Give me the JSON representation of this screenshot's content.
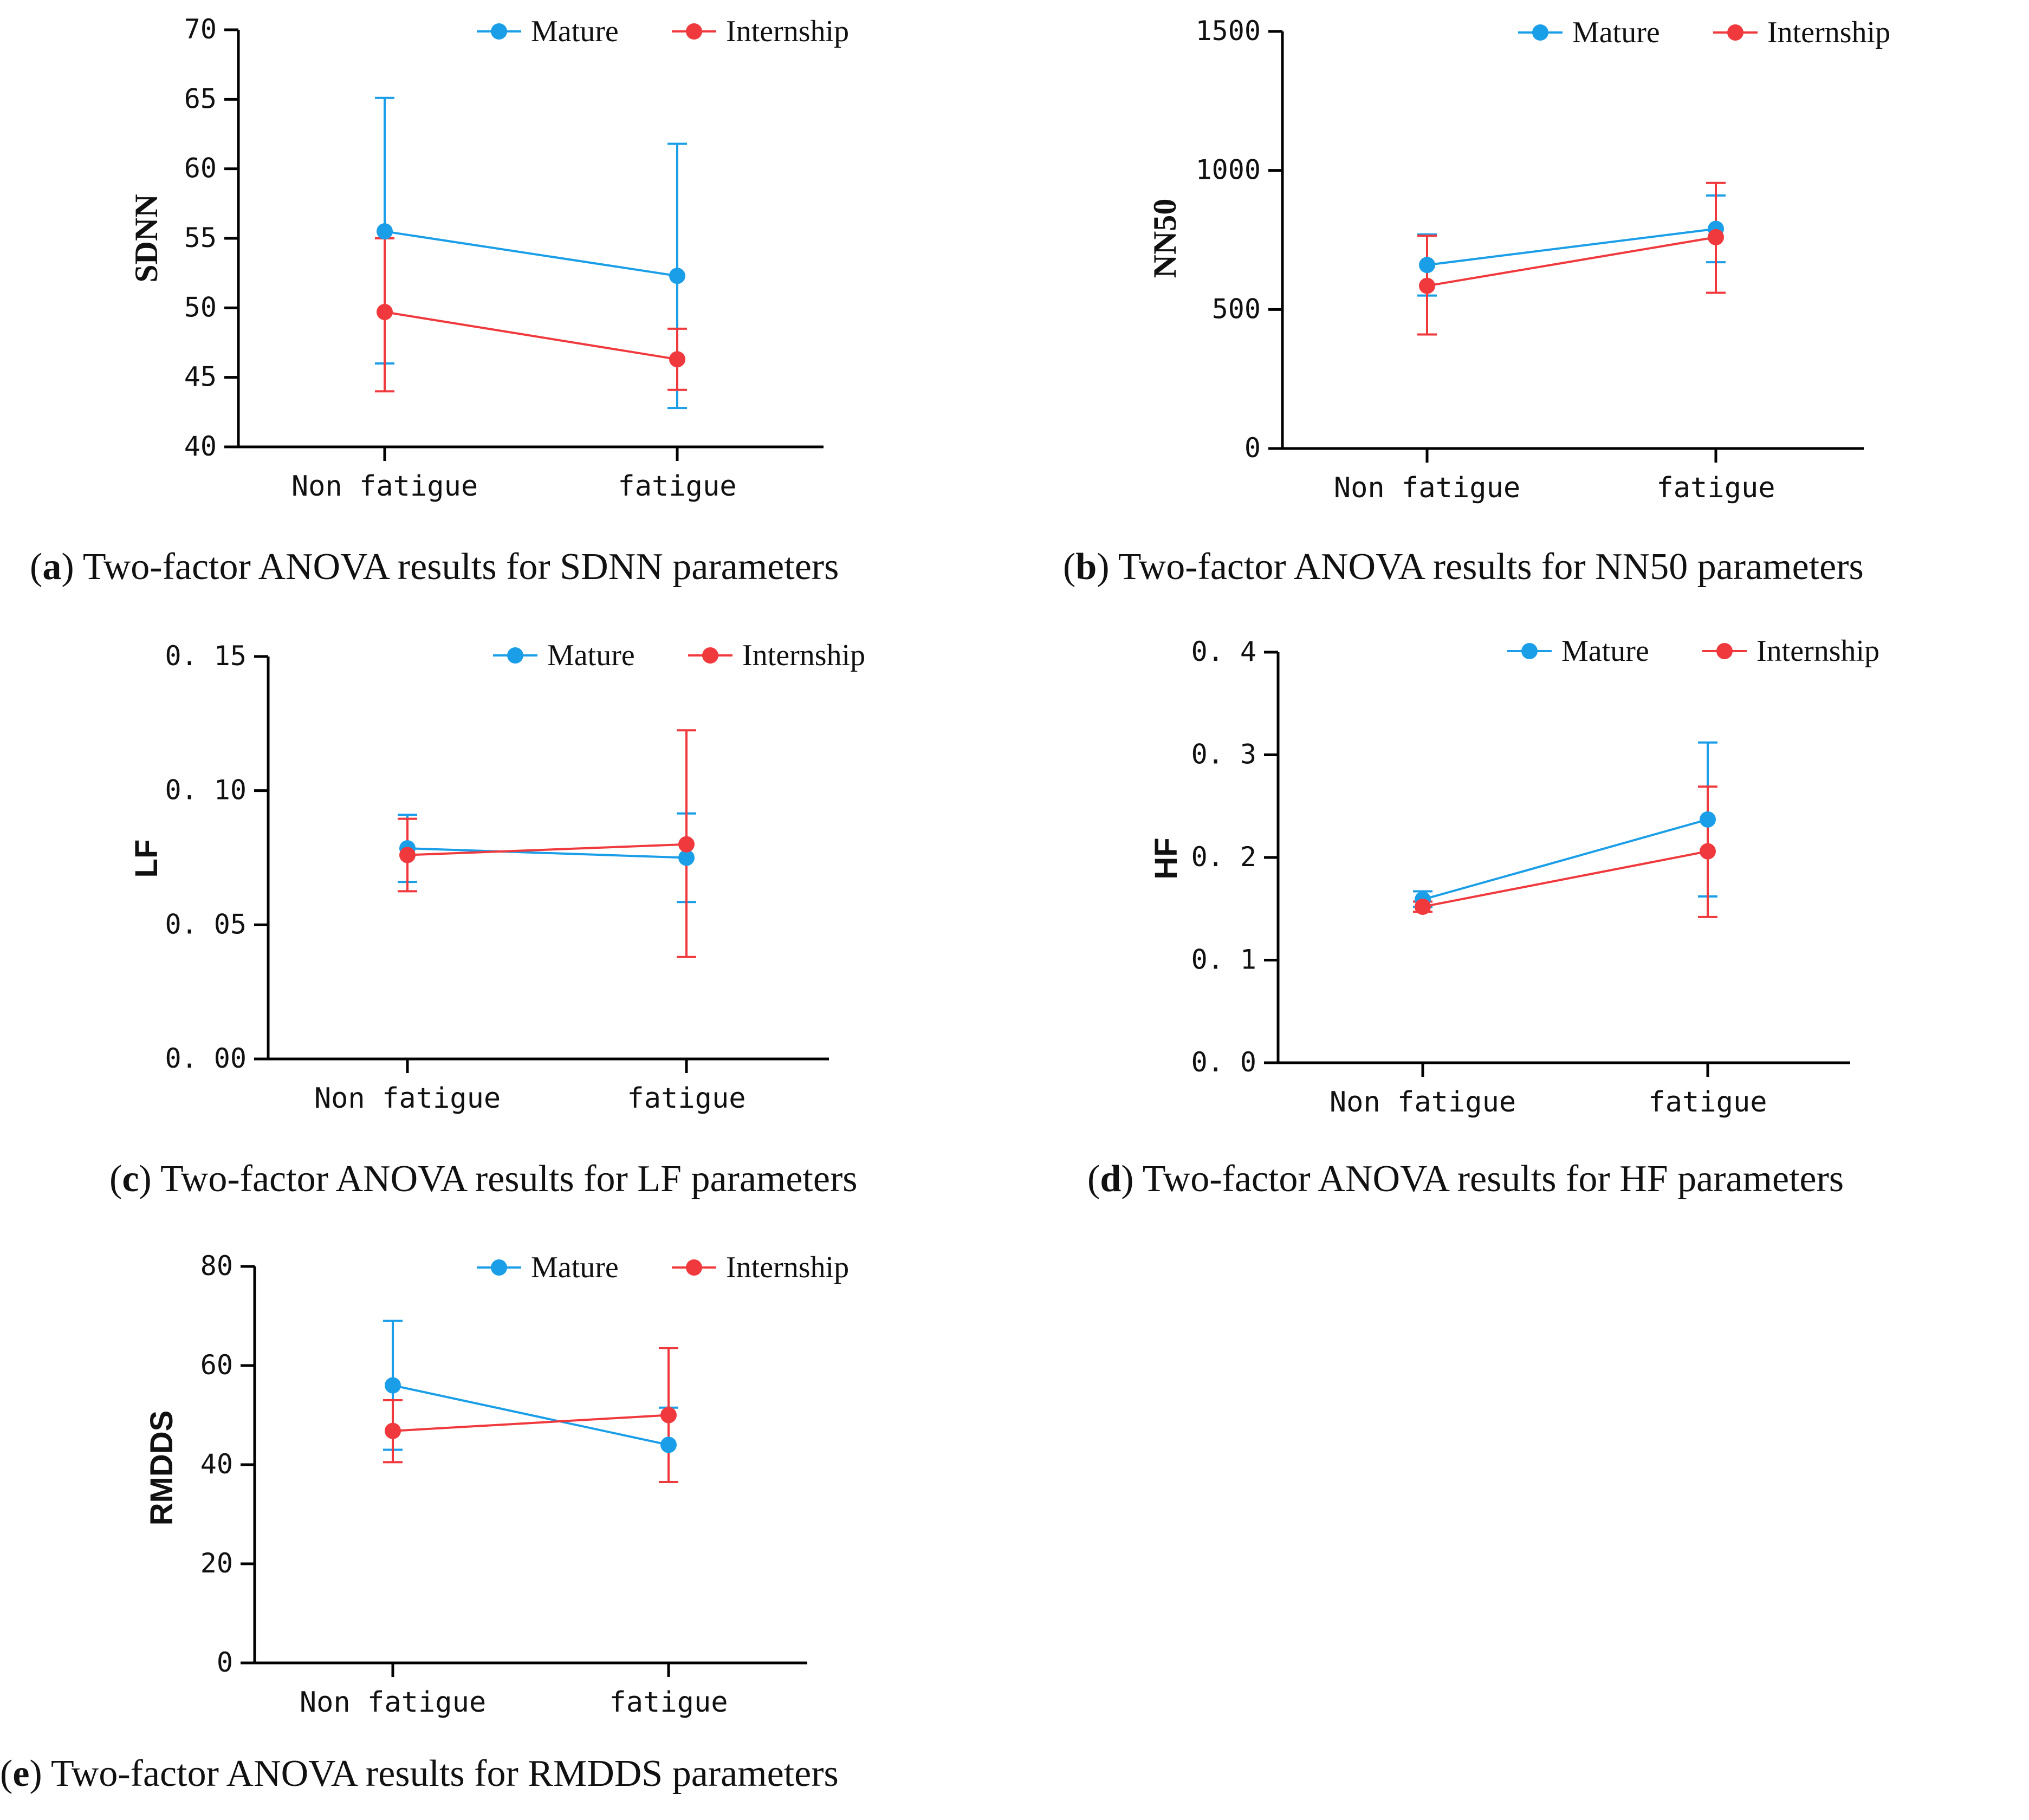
{
  "colors": {
    "mature": "#1a9ee8",
    "internship": "#f0393d",
    "axis": "#000000"
  },
  "legend_labels": [
    "Mature",
    "Internship"
  ],
  "chart_data": [
    {
      "id": "a",
      "type": "line",
      "title": "",
      "caption_letter": "a",
      "caption_text": "Two-factor ANOVA results for SDNN parameters",
      "ylabel": "SDNN",
      "ylabel_font": "serif",
      "categories": [
        "Non fatigue",
        "fatigue"
      ],
      "ylim": [
        40,
        70
      ],
      "yticks": [
        40,
        45,
        50,
        55,
        60,
        65,
        70
      ],
      "ytick_labels": [
        "40",
        "45",
        "50",
        "55",
        "60",
        "65",
        "70"
      ],
      "series": [
        {
          "name": "Mature",
          "values": [
            55.5,
            52.3
          ],
          "err_low": [
            46.0,
            42.8
          ],
          "err_high": [
            65.1,
            61.8
          ]
        },
        {
          "name": "Internship",
          "values": [
            49.7,
            46.3
          ],
          "err_low": [
            44.0,
            44.1
          ],
          "err_high": [
            55.0,
            48.5
          ]
        }
      ]
    },
    {
      "id": "b",
      "type": "line",
      "title": "",
      "caption_letter": "b",
      "caption_text": "Two-factor ANOVA results for NN50 parameters",
      "ylabel": "NN50",
      "ylabel_font": "serif",
      "categories": [
        "Non fatigue",
        "fatigue"
      ],
      "ylim": [
        0,
        1500
      ],
      "yticks": [
        0,
        500,
        1000,
        1500
      ],
      "ytick_labels": [
        "0",
        "500",
        "1000",
        "1500"
      ],
      "series": [
        {
          "name": "Mature",
          "values": [
            660,
            790
          ],
          "err_low": [
            550,
            670
          ],
          "err_high": [
            770,
            910
          ]
        },
        {
          "name": "Internship",
          "values": [
            585,
            760
          ],
          "err_low": [
            410,
            560
          ],
          "err_high": [
            765,
            955
          ]
        }
      ]
    },
    {
      "id": "c",
      "type": "line",
      "title": "",
      "caption_letter": "c",
      "caption_text": "Two-factor ANOVA results for LF parameters",
      "ylabel": "LF",
      "ylabel_font": "sans",
      "categories": [
        "Non fatigue",
        "fatigue"
      ],
      "ylim": [
        0,
        0.15
      ],
      "yticks": [
        0,
        0.05,
        0.1,
        0.15
      ],
      "ytick_labels": [
        "0. 00",
        "0. 05",
        "0. 10",
        "0. 15"
      ],
      "series": [
        {
          "name": "Mature",
          "values": [
            0.0785,
            0.075
          ],
          "err_low": [
            0.066,
            0.0585
          ],
          "err_high": [
            0.091,
            0.0915
          ]
        },
        {
          "name": "Internship",
          "values": [
            0.076,
            0.08
          ],
          "err_low": [
            0.0625,
            0.038
          ],
          "err_high": [
            0.0895,
            0.1225
          ]
        }
      ]
    },
    {
      "id": "d",
      "type": "line",
      "title": "",
      "caption_letter": "d",
      "caption_text": "Two-factor ANOVA results for HF parameters",
      "ylabel": "HF",
      "ylabel_font": "sans",
      "categories": [
        "Non fatigue",
        "fatigue"
      ],
      "ylim": [
        0,
        0.4
      ],
      "yticks": [
        0,
        0.1,
        0.2,
        0.3,
        0.4
      ],
      "ytick_labels": [
        "0. 0",
        "0. 1",
        "0. 2",
        "0. 3",
        "0. 4"
      ],
      "series": [
        {
          "name": "Mature",
          "values": [
            0.159,
            0.237
          ],
          "err_low": [
            0.152,
            0.162
          ],
          "err_high": [
            0.167,
            0.312
          ]
        },
        {
          "name": "Internship",
          "values": [
            0.152,
            0.206
          ],
          "err_low": [
            0.147,
            0.142
          ],
          "err_high": [
            0.157,
            0.269
          ]
        }
      ]
    },
    {
      "id": "e",
      "type": "line",
      "title": "",
      "caption_letter": "e",
      "caption_text": "Two-factor ANOVA results for RMDDS parameters",
      "ylabel": "RMDDS",
      "ylabel_font": "sans",
      "categories": [
        "Non fatigue",
        "fatigue"
      ],
      "ylim": [
        0,
        80
      ],
      "yticks": [
        0,
        20,
        40,
        60,
        80
      ],
      "ytick_labels": [
        "0",
        "20",
        "40",
        "60",
        "80"
      ],
      "series": [
        {
          "name": "Mature",
          "values": [
            56,
            44
          ],
          "err_low": [
            43,
            36.5
          ],
          "err_high": [
            69,
            51.5
          ]
        },
        {
          "name": "Internship",
          "values": [
            46.8,
            50
          ],
          "err_low": [
            40.5,
            36.5
          ],
          "err_high": [
            53,
            63.5
          ]
        }
      ]
    }
  ]
}
